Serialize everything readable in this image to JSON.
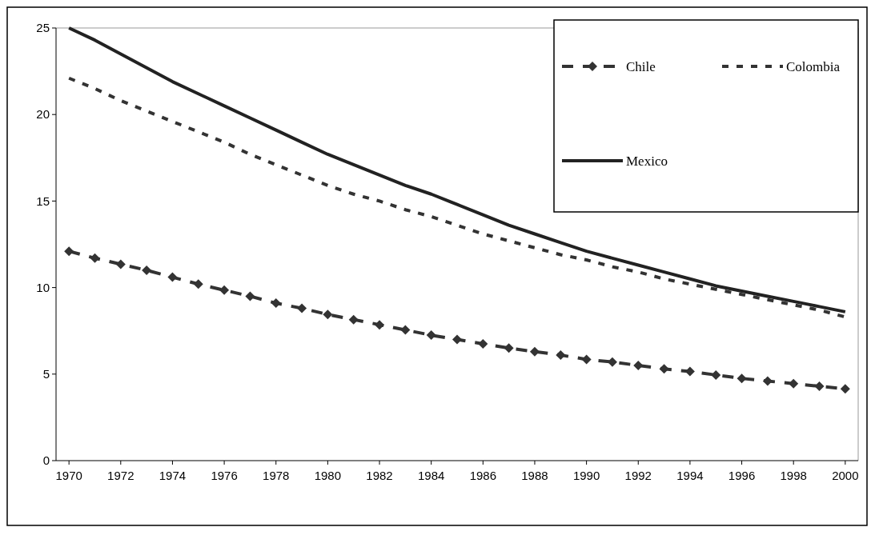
{
  "chart_data": {
    "type": "line",
    "x": [
      1970,
      1971,
      1972,
      1973,
      1974,
      1975,
      1976,
      1977,
      1978,
      1979,
      1980,
      1981,
      1982,
      1983,
      1984,
      1985,
      1986,
      1987,
      1988,
      1989,
      1990,
      1991,
      1992,
      1993,
      1994,
      1995,
      1996,
      1997,
      1998,
      1999,
      2000
    ],
    "series": [
      {
        "name": "Chile",
        "color": "#333333",
        "line_style": "dashed",
        "marker": "diamond",
        "values": [
          12.1,
          11.7,
          11.35,
          11.0,
          10.6,
          10.2,
          9.85,
          9.5,
          9.1,
          8.8,
          8.45,
          8.15,
          7.85,
          7.55,
          7.25,
          7.0,
          6.75,
          6.5,
          6.3,
          6.1,
          5.85,
          5.7,
          5.5,
          5.3,
          5.15,
          4.95,
          4.75,
          4.6,
          4.45,
          4.3,
          4.15
        ]
      },
      {
        "name": "Colombia",
        "color": "#333333",
        "line_style": "dotted",
        "marker": "none",
        "values": [
          22.1,
          21.5,
          20.8,
          20.2,
          19.6,
          19.0,
          18.4,
          17.7,
          17.1,
          16.5,
          15.9,
          15.4,
          15.0,
          14.5,
          14.1,
          13.6,
          13.1,
          12.7,
          12.3,
          11.9,
          11.6,
          11.2,
          10.9,
          10.5,
          10.2,
          9.9,
          9.6,
          9.3,
          9.0,
          8.7,
          8.3
        ]
      },
      {
        "name": "Mexico",
        "color": "#222222",
        "line_style": "solid",
        "marker": "none",
        "values": [
          25.0,
          24.3,
          23.5,
          22.7,
          21.9,
          21.2,
          20.5,
          19.8,
          19.1,
          18.4,
          17.7,
          17.1,
          16.5,
          15.9,
          15.4,
          14.8,
          14.2,
          13.6,
          13.1,
          12.6,
          12.1,
          11.7,
          11.3,
          10.9,
          10.5,
          10.1,
          9.8,
          9.5,
          9.2,
          8.9,
          8.6
        ]
      }
    ],
    "xlim": [
      1969.5,
      2000.5
    ],
    "xticks": [
      1970,
      1972,
      1974,
      1976,
      1978,
      1980,
      1982,
      1984,
      1986,
      1988,
      1990,
      1992,
      1994,
      1996,
      1998,
      2000
    ],
    "ylim": [
      0,
      25
    ],
    "yticks": [
      0,
      5,
      10,
      15,
      20,
      25
    ],
    "grid": false,
    "legend": "top right"
  }
}
